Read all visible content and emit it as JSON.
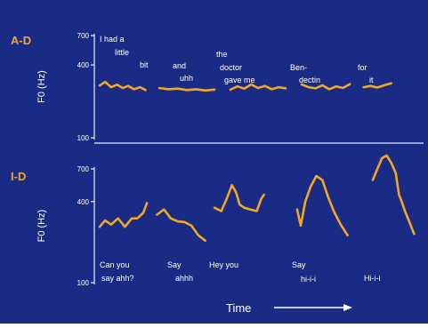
{
  "colors": {
    "background": "#1a2b86",
    "panel_label": "#f2a724",
    "trace": "#f2a724",
    "axis": "#e9ecff",
    "text": "#ffffff"
  },
  "xlabel": "Time",
  "chart_data": [
    {
      "type": "line",
      "panel_label": "A-D",
      "ylabel": "F0 (Hz)",
      "yscale": "log",
      "ylim": [
        100,
        700
      ],
      "yticks": [
        100,
        400,
        700
      ],
      "series": [
        {
          "words": [
            "I had a",
            "little",
            "bit"
          ],
          "t": [
            0.0,
            0.12,
            0.25,
            0.38,
            0.5,
            0.62,
            0.75,
            0.88,
            1.0
          ],
          "f0": [
            270,
            290,
            262,
            275,
            258,
            268,
            252,
            262,
            248
          ]
        },
        {
          "words": [
            "and",
            "uhh"
          ],
          "t": [
            1.3,
            1.5,
            1.7,
            1.9,
            2.1,
            2.3,
            2.5
          ],
          "f0": [
            258,
            252,
            255,
            248,
            252,
            246,
            250
          ]
        },
        {
          "words": [
            "the",
            "doctor",
            "gave me"
          ],
          "t": [
            2.85,
            3.0,
            3.15,
            3.3,
            3.45,
            3.6,
            3.75,
            3.9,
            4.05
          ],
          "f0": [
            250,
            266,
            255,
            276,
            258,
            268,
            252,
            262,
            256
          ]
        },
        {
          "words": [
            "Ben-",
            "dectin"
          ],
          "t": [
            4.4,
            4.55,
            4.7,
            4.85,
            5.0,
            5.15,
            5.3,
            5.45
          ],
          "f0": [
            276,
            262,
            256,
            272,
            252,
            266,
            258,
            278
          ]
        },
        {
          "words": [
            "for",
            "it"
          ],
          "t": [
            5.75,
            5.9,
            6.05,
            6.2,
            6.35
          ],
          "f0": [
            262,
            268,
            260,
            272,
            282
          ]
        }
      ]
    },
    {
      "type": "line",
      "panel_label": "I-D",
      "ylabel": "F0 (Hz)",
      "yscale": "log",
      "ylim": [
        100,
        700
      ],
      "yticks": [
        100,
        400,
        700
      ],
      "series": [
        {
          "words": [
            "Can you",
            "say ahh?"
          ],
          "t": [
            0.0,
            0.12,
            0.25,
            0.4,
            0.55,
            0.7,
            0.82,
            0.95,
            1.03
          ],
          "f0": [
            260,
            290,
            270,
            300,
            260,
            300,
            300,
            330,
            390
          ]
        },
        {
          "words": [
            "Say",
            "ahhh"
          ],
          "t": [
            1.25,
            1.4,
            1.55,
            1.7,
            1.85,
            2.0,
            2.15,
            2.3
          ],
          "f0": [
            320,
            350,
            300,
            285,
            282,
            265,
            225,
            205
          ]
        },
        {
          "words": [
            "Hey you"
          ],
          "t": [
            2.5,
            2.65,
            2.78,
            2.88,
            2.97,
            3.05,
            3.15,
            3.28,
            3.42,
            3.52,
            3.58
          ],
          "f0": [
            360,
            340,
            430,
            530,
            470,
            380,
            360,
            350,
            340,
            420,
            450
          ]
        },
        {
          "words": [
            "Say",
            "hi-i-i"
          ],
          "t": [
            4.3,
            4.38,
            4.48,
            4.6,
            4.72,
            4.85,
            4.98,
            5.1,
            5.25,
            5.4
          ],
          "f0": [
            350,
            265,
            400,
            520,
            620,
            580,
            430,
            340,
            270,
            225
          ]
        },
        {
          "words": [
            "Hi-i-i"
          ],
          "t": [
            5.95,
            6.05,
            6.15,
            6.25,
            6.35,
            6.45,
            6.52,
            6.58,
            6.65,
            6.75,
            6.85
          ],
          "f0": [
            580,
            700,
            840,
            880,
            780,
            650,
            450,
            400,
            340,
            280,
            230
          ]
        }
      ]
    }
  ]
}
